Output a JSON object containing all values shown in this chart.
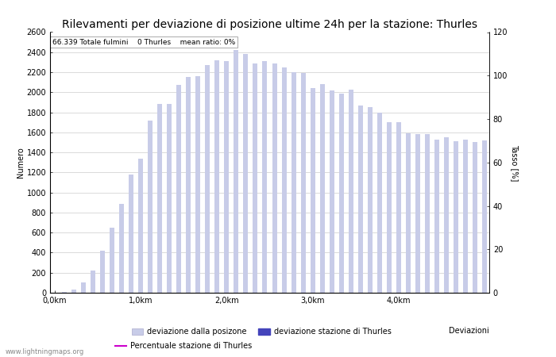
{
  "title": "Rilevamenti per deviazione di posizione ultime 24h per la stazione: Thurles",
  "subtitle": "66.339 Totale fulmini    0 Thurles    mean ratio: 0%",
  "xlabel": "Deviazioni",
  "ylabel_left": "Numero",
  "ylabel_right": "Tasso [%]",
  "ylim_left": [
    0,
    2600
  ],
  "ylim_right": [
    0,
    120
  ],
  "yticks_left": [
    0,
    200,
    400,
    600,
    800,
    1000,
    1200,
    1400,
    1600,
    1800,
    2000,
    2200,
    2400,
    2600
  ],
  "yticks_right": [
    0,
    20,
    40,
    60,
    80,
    100,
    120
  ],
  "xtick_positions": [
    0,
    9,
    18,
    27,
    36,
    45
  ],
  "xtick_labels": [
    "0,0km",
    "1,0km",
    "2,0km",
    "3,0km",
    "4,0km",
    ""
  ],
  "bar_values": [
    0,
    10,
    30,
    100,
    220,
    420,
    650,
    890,
    1180,
    1340,
    1720,
    1880,
    1880,
    2070,
    2150,
    2160,
    2270,
    2320,
    2310,
    2420,
    2380,
    2290,
    2310,
    2290,
    2250,
    2200,
    2190,
    2040,
    2080,
    2020,
    1990,
    2030,
    1870,
    1850,
    1800,
    1700,
    1700,
    1590,
    1580,
    1580,
    1530,
    1550,
    1510,
    1530,
    1500,
    1520
  ],
  "bar_color_light": "#c8cce8",
  "bar_color_dark": "#4444bb",
  "background_color": "#ffffff",
  "grid_color": "#cccccc",
  "title_fontsize": 10,
  "axis_fontsize": 7,
  "legend_labels": [
    "deviazione dalla posizone",
    "deviazione stazione di Thurles",
    "Percentuale stazione di Thurles"
  ],
  "line_color": "#cc00cc",
  "watermark": "www.lightningmaps.org"
}
